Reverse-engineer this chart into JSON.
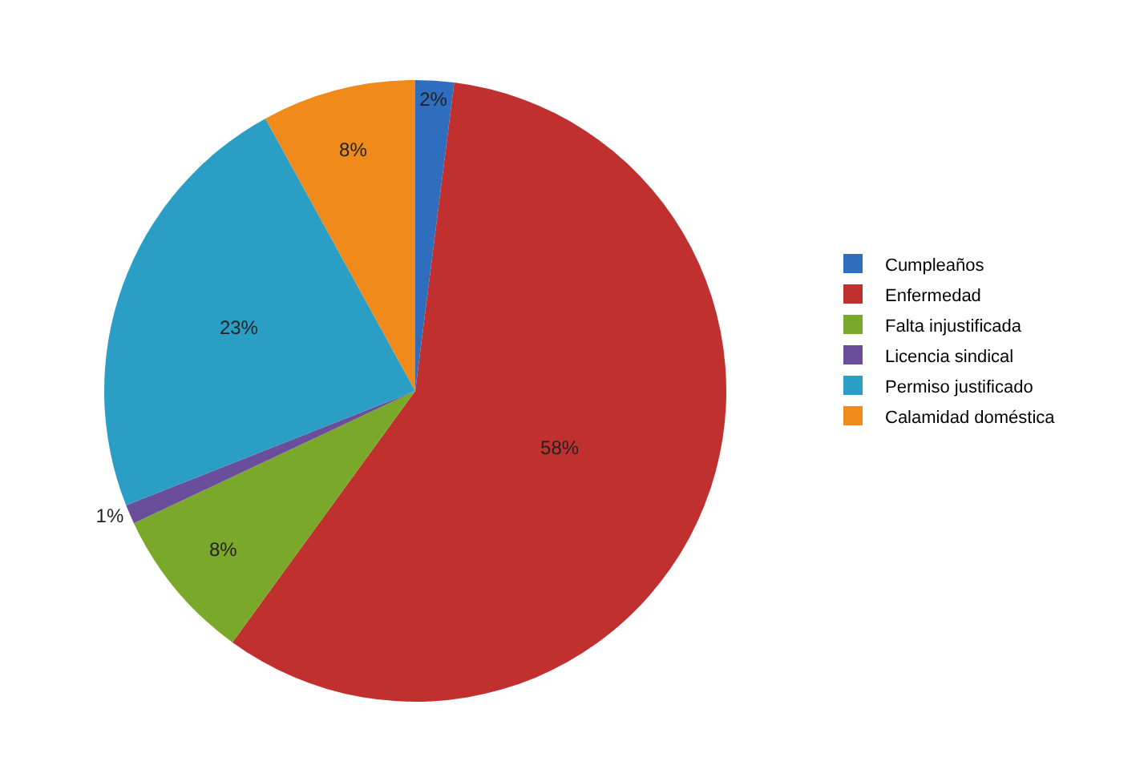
{
  "chart_data": {
    "type": "pie",
    "categories": [
      "Cumpleaños",
      "Enfermedad",
      "Falta injustificada",
      "Licencia sindical",
      "Permiso justificado",
      "Calamidad doméstica"
    ],
    "values": [
      2,
      58,
      8,
      1,
      23,
      8
    ],
    "value_labels": [
      "2%",
      "58%",
      "8%",
      "1%",
      "23%",
      "8%"
    ],
    "colors": [
      "#2f6ebe",
      "#c0302e",
      "#7aa82a",
      "#6b4e9b",
      "#2a9ec5",
      "#f08a1a"
    ],
    "legend": "right"
  }
}
